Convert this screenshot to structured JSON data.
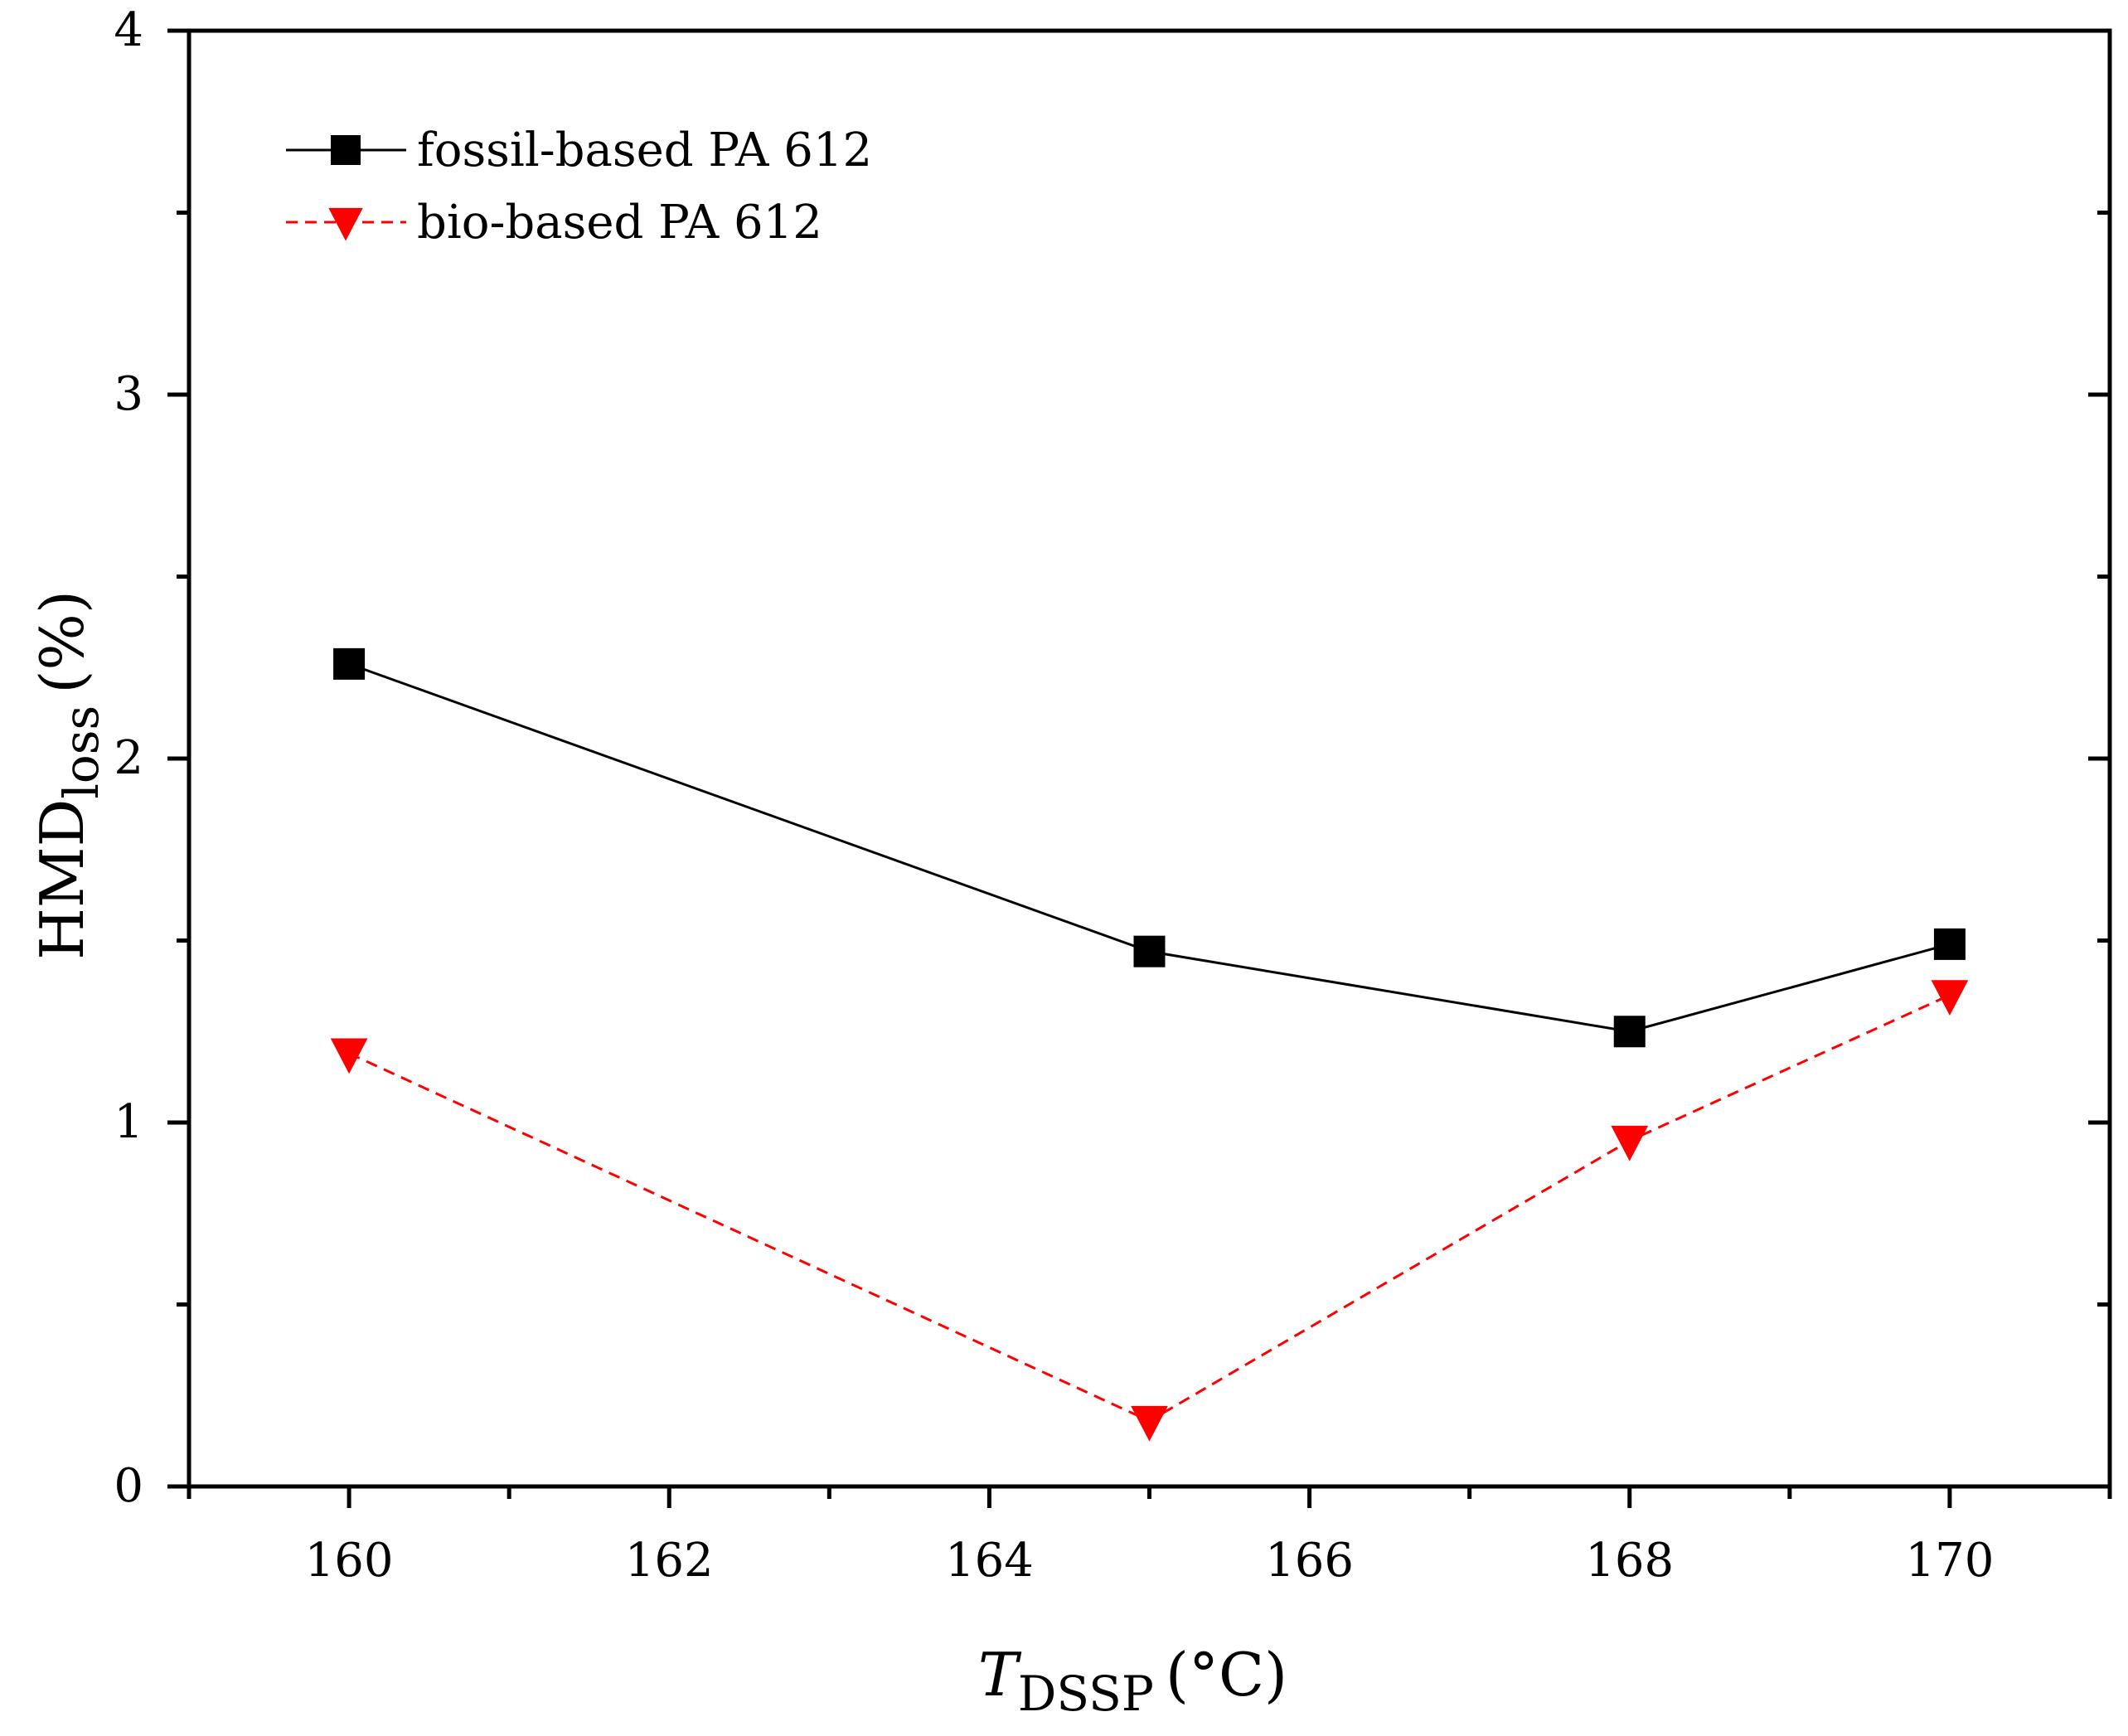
{
  "chart_data": {
    "type": "line",
    "title": "",
    "xlabel": {
      "main": "T",
      "sub": "DSSP",
      "unit": "(°C)"
    },
    "ylabel": {
      "main": "HMD",
      "sub": "loss",
      "unit": "(%)"
    },
    "xlim": [
      159,
      171
    ],
    "ylim": [
      0,
      4
    ],
    "x_ticks": [
      160,
      162,
      164,
      166,
      168,
      170
    ],
    "x_minor_ticks": [
      159,
      161,
      163,
      165,
      167,
      169,
      171
    ],
    "y_ticks": [
      0,
      1,
      2,
      3,
      4
    ],
    "y_minor_ticks": [
      0.5,
      1.5,
      2.5,
      3.5
    ],
    "x_tick_labels": [
      "160",
      "162",
      "164",
      "166",
      "168",
      "170"
    ],
    "y_tick_labels": [
      "0",
      "1",
      "2",
      "3",
      "4"
    ],
    "legend_position": "top-left",
    "grid": false,
    "series": [
      {
        "name": "fossil-based PA 612",
        "color": "#000000",
        "marker": "square",
        "line_style": "solid",
        "x": [
          160,
          165,
          168,
          170
        ],
        "y": [
          2.26,
          1.47,
          1.25,
          1.49
        ]
      },
      {
        "name": "bio-based PA 612",
        "color": "#ff0000",
        "marker": "triangle-down",
        "line_style": "dashed",
        "x": [
          160,
          165,
          168,
          170
        ],
        "y": [
          1.19,
          0.18,
          0.95,
          1.35
        ]
      }
    ]
  }
}
